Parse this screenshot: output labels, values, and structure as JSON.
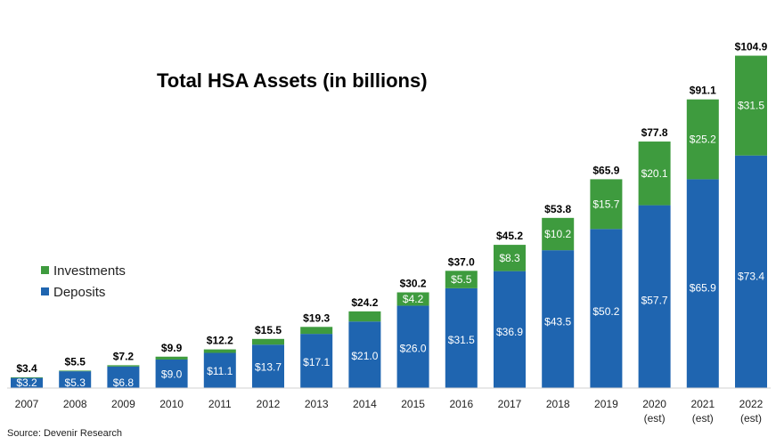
{
  "chart_data": {
    "type": "bar",
    "stacked": true,
    "title": "Total HSA Assets (in billions)",
    "source": "Source: Devenir Research",
    "categories": [
      [
        "2007"
      ],
      [
        "2008"
      ],
      [
        "2009"
      ],
      [
        "2010"
      ],
      [
        "2011"
      ],
      [
        "2012"
      ],
      [
        "2013"
      ],
      [
        "2014"
      ],
      [
        "2015"
      ],
      [
        "2016"
      ],
      [
        "2017"
      ],
      [
        "2018"
      ],
      [
        "2019"
      ],
      [
        "2020",
        "(est)"
      ],
      [
        "2021",
        "(est)"
      ],
      [
        "2022",
        "(est)"
      ]
    ],
    "series": [
      {
        "name": "Deposits",
        "color": "#1f65b0",
        "values": [
          3.2,
          5.3,
          6.8,
          9.0,
          11.1,
          13.7,
          17.1,
          21.0,
          26.0,
          31.5,
          36.9,
          43.5,
          50.2,
          57.7,
          65.9,
          73.4
        ],
        "labels": [
          "$3.2",
          "$5.3",
          "$6.8",
          "$9.0",
          "$11.1",
          "$13.7",
          "$17.1",
          "$21.0",
          "$26.0",
          "$31.5",
          "$36.9",
          "$43.5",
          "$50.2",
          "$57.7",
          "$65.9",
          "$73.4"
        ]
      },
      {
        "name": "Investments",
        "color": "#3e9b3e",
        "values": [
          0.2,
          0.2,
          0.4,
          0.9,
          1.1,
          1.8,
          2.2,
          3.2,
          4.2,
          5.5,
          8.3,
          10.2,
          15.7,
          20.1,
          25.2,
          31.5
        ],
        "labels": [
          "",
          "",
          "",
          "",
          "",
          "",
          "",
          "",
          "$4.2",
          "$5.5",
          "$8.3",
          "$10.2",
          "$15.7",
          "$20.1",
          "$25.2",
          "$31.5"
        ]
      }
    ],
    "totals": [
      "$3.4",
      "$5.5",
      "$7.2",
      "$9.9",
      "$12.2",
      "$15.5",
      "$19.3",
      "$24.2",
      "$30.2",
      "$37.0",
      "$45.2",
      "$53.8",
      "$65.9",
      "$77.8",
      "$91.1",
      "$104.9"
    ],
    "legend": [
      {
        "label": "Investments",
        "color": "#3e9b3e"
      },
      {
        "label": "Deposits",
        "color": "#1f65b0"
      }
    ],
    "legend_position": "middle-left",
    "ylim": [
      0,
      105
    ],
    "grid": false
  }
}
